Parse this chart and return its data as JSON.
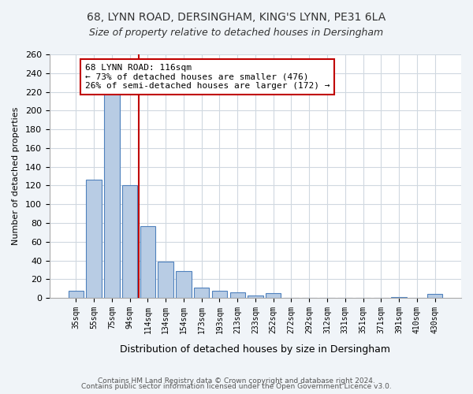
{
  "title1": "68, LYNN ROAD, DERSINGHAM, KING'S LYNN, PE31 6LA",
  "title2": "Size of property relative to detached houses in Dersingham",
  "xlabel": "Distribution of detached houses by size in Dersingham",
  "ylabel": "Number of detached properties",
  "bar_color": "#b8cce4",
  "bar_edge_color": "#4f81bd",
  "categories": [
    "35sqm",
    "55sqm",
    "75sqm",
    "94sqm",
    "114sqm",
    "134sqm",
    "154sqm",
    "173sqm",
    "193sqm",
    "213sqm",
    "233sqm",
    "252sqm",
    "272sqm",
    "292sqm",
    "312sqm",
    "331sqm",
    "351sqm",
    "371sqm",
    "391sqm",
    "410sqm",
    "430sqm"
  ],
  "values": [
    8,
    126,
    218,
    120,
    77,
    39,
    29,
    11,
    8,
    6,
    3,
    5,
    0,
    0,
    0,
    0,
    0,
    0,
    1,
    0,
    4
  ],
  "ylim": [
    0,
    260
  ],
  "yticks": [
    0,
    20,
    40,
    60,
    80,
    100,
    120,
    140,
    160,
    180,
    200,
    220,
    240,
    260
  ],
  "vline_x_index": 4,
  "vline_color": "#c00000",
  "annotation_title": "68 LYNN ROAD: 116sqm",
  "annotation_line1": "← 73% of detached houses are smaller (476)",
  "annotation_line2": "26% of semi-detached houses are larger (172) →",
  "annotation_box_color": "#ffffff",
  "annotation_box_edge": "#c00000",
  "footer1": "Contains HM Land Registry data © Crown copyright and database right 2024.",
  "footer2": "Contains public sector information licensed under the Open Government Licence v3.0.",
  "background_color": "#f0f4f8",
  "plot_bg_color": "#ffffff",
  "grid_color": "#d0d8e0"
}
